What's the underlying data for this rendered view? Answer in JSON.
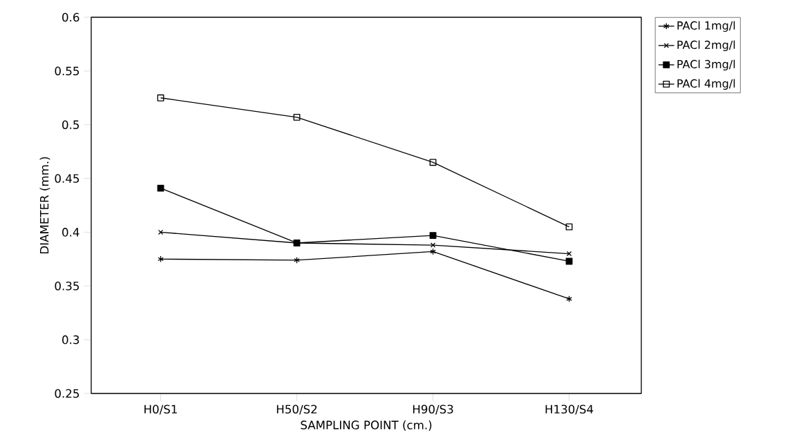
{
  "chart_data": {
    "type": "line",
    "xlabel": "SAMPLING POINT (cm.)",
    "ylabel": "DIAMETER (mm.)",
    "categories": [
      "H0/S1",
      "H50/S2",
      "H90/S3",
      "H130/S4"
    ],
    "series": [
      {
        "name": "PACl 1mg/l",
        "color": "#000000",
        "marker": "cross",
        "values": [
          0.375,
          0.374,
          0.382,
          0.338
        ]
      },
      {
        "name": "PACl 2mg/l",
        "color": "#000000",
        "marker": "cross",
        "values": [
          0.4,
          0.39,
          0.388,
          0.38
        ]
      },
      {
        "name": "PACl 3mg/l",
        "color": "#000000",
        "marker": "square",
        "values": [
          0.441,
          0.39,
          0.397,
          0.373
        ]
      },
      {
        "name": "PACl 4mg/l",
        "color": "#000000",
        "marker": "square",
        "values": [
          0.525,
          0.507,
          0.465,
          0.405
        ]
      }
    ],
    "ylim": [
      0.25,
      0.6
    ],
    "yticks": [
      0.25,
      0.3,
      0.35,
      0.4,
      0.45,
      0.5,
      0.55,
      0.6
    ],
    "grid": false,
    "legend": "right",
    "line_style": "solid"
  }
}
